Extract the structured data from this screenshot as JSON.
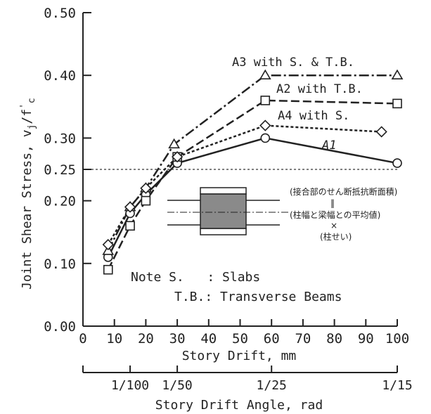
{
  "chart_data": {
    "type": "line",
    "ylabel_main": "Joint Shear Stress, v",
    "ylabel_sub1": "j",
    "ylabel_slash": "/f",
    "ylabel_prime": "'",
    "ylabel_sub2": "c",
    "xlabel": "Story Drift, mm",
    "x2label": "Story Drift Angle, rad",
    "xlim": [
      0,
      100
    ],
    "ylim": [
      0,
      0.5
    ],
    "x_ticks": [
      "0",
      "10",
      "20",
      "30",
      "40",
      "50",
      "60",
      "70",
      "80",
      "90",
      "100"
    ],
    "y_ticks": [
      "0.00",
      "0.10",
      "0.20",
      "0.25",
      "0.30",
      "0.40",
      "0.50"
    ],
    "x2_ticks": [
      {
        "label": "1/100",
        "x": 15
      },
      {
        "label": "1/50",
        "x": 30
      },
      {
        "label": "1/25",
        "x": 60
      },
      {
        "label": "1/15",
        "x": 100
      }
    ],
    "reference_line": {
      "y": 0.25
    },
    "series": [
      {
        "name": "A1",
        "marker": "circle",
        "dash": "solid",
        "x": [
          8,
          15,
          20,
          30,
          58,
          100
        ],
        "y": [
          0.11,
          0.18,
          0.21,
          0.26,
          0.3,
          0.26
        ]
      },
      {
        "name": "A2 with T.B.",
        "marker": "square",
        "dash": "dashed",
        "x": [
          8,
          15,
          20,
          30,
          58,
          100
        ],
        "y": [
          0.09,
          0.16,
          0.2,
          0.27,
          0.36,
          0.355
        ]
      },
      {
        "name": "A3 with S. & T.B.",
        "marker": "triangle",
        "dash": "dashdot",
        "x": [
          8,
          15,
          20,
          29,
          58,
          100
        ],
        "y": [
          0.12,
          0.19,
          0.22,
          0.29,
          0.4,
          0.4
        ]
      },
      {
        "name": "A4 with S.",
        "marker": "diamond",
        "dash": "dotted",
        "x": [
          8,
          15,
          20,
          30,
          58,
          95
        ],
        "y": [
          0.13,
          0.19,
          0.22,
          0.27,
          0.32,
          0.31
        ]
      }
    ],
    "inset_annotation": {
      "line1": "(接合部のせん断抵抗断面積)",
      "line2": "‖",
      "line3": "(柱幅と梁幅との平均値)",
      "line4": "×",
      "line5": "(柱せい)"
    },
    "note": {
      "line1": "Note S.   : Slabs",
      "line2": "T.B.: Transverse Beams"
    }
  }
}
